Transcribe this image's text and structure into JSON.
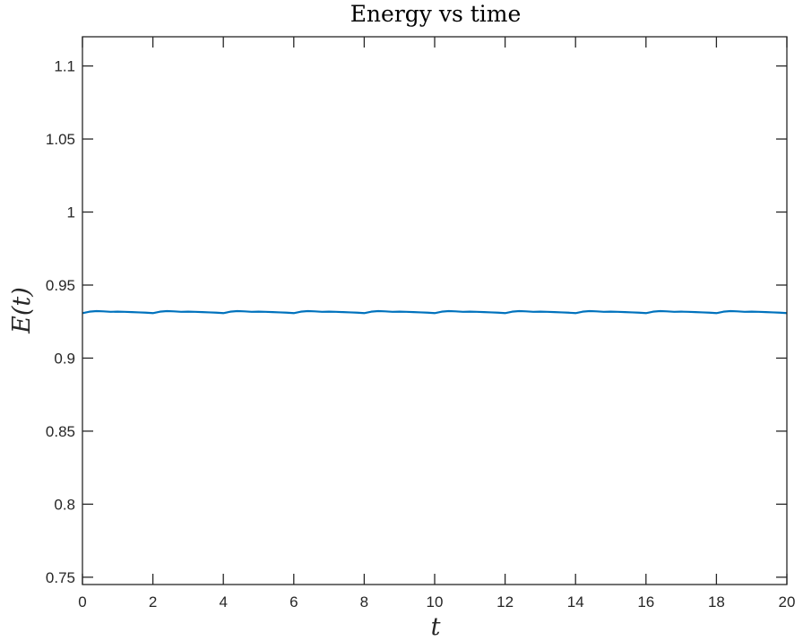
{
  "chart_data": {
    "type": "line",
    "title": "Energy vs time",
    "xlabel": "t",
    "ylabel": "E(t)",
    "xlim": [
      0,
      20
    ],
    "ylim": [
      0.745,
      1.12
    ],
    "grid": false,
    "x_ticks": [
      0,
      2,
      4,
      6,
      8,
      10,
      12,
      14,
      16,
      18,
      20
    ],
    "x_tick_labels": [
      "0",
      "2",
      "4",
      "6",
      "8",
      "10",
      "12",
      "14",
      "16",
      "18",
      "20"
    ],
    "y_ticks": [
      0.75,
      0.8,
      0.85,
      0.9,
      0.95,
      1,
      1.05,
      1.1
    ],
    "y_tick_labels": [
      "0.75",
      "0.8",
      "0.85",
      "0.9",
      "0.95",
      "1",
      "1.05",
      "1.1"
    ],
    "series": [
      {
        "color": "#0072BD",
        "x": [
          0,
          0.2,
          0.4,
          0.6,
          0.8,
          1.0,
          1.2,
          1.4,
          1.6,
          1.8,
          2.0,
          2.2,
          2.4,
          2.6,
          2.8,
          3.0,
          3.2,
          3.4,
          3.6,
          3.8,
          4.0,
          4.2,
          4.4,
          4.6,
          4.8,
          5.0,
          5.2,
          5.4,
          5.6,
          5.8,
          6.0,
          6.2,
          6.4,
          6.6,
          6.8,
          7.0,
          7.2,
          7.4,
          7.6,
          7.8,
          8.0,
          8.2,
          8.4,
          8.6,
          8.8,
          9.0,
          9.2,
          9.4,
          9.6,
          9.8,
          10.0,
          10.2,
          10.4,
          10.6,
          10.8,
          11.0,
          11.2,
          11.4,
          11.6,
          11.8,
          12.0,
          12.2,
          12.4,
          12.6,
          12.8,
          13.0,
          13.2,
          13.4,
          13.6,
          13.8,
          14.0,
          14.2,
          14.4,
          14.6,
          14.8,
          15.0,
          15.2,
          15.4,
          15.6,
          15.8,
          16.0,
          16.2,
          16.4,
          16.6,
          16.8,
          17.0,
          17.2,
          17.4,
          17.6,
          17.8,
          18.0,
          18.2,
          18.4,
          18.6,
          18.8,
          19.0,
          19.2,
          19.4,
          19.6,
          19.8,
          20.0
        ],
        "y": [
          0.9308,
          0.9318,
          0.9322,
          0.932,
          0.9317,
          0.9318,
          0.9317,
          0.9315,
          0.9313,
          0.9311,
          0.9308,
          0.9318,
          0.9322,
          0.932,
          0.9317,
          0.9318,
          0.9317,
          0.9315,
          0.9313,
          0.9311,
          0.9308,
          0.9318,
          0.9322,
          0.932,
          0.9317,
          0.9318,
          0.9317,
          0.9315,
          0.9313,
          0.9311,
          0.9308,
          0.9318,
          0.9322,
          0.932,
          0.9317,
          0.9318,
          0.9317,
          0.9315,
          0.9313,
          0.9311,
          0.9308,
          0.9318,
          0.9322,
          0.932,
          0.9317,
          0.9318,
          0.9317,
          0.9315,
          0.9313,
          0.9311,
          0.9308,
          0.9318,
          0.9322,
          0.932,
          0.9317,
          0.9318,
          0.9317,
          0.9315,
          0.9313,
          0.9311,
          0.9308,
          0.9318,
          0.9322,
          0.932,
          0.9317,
          0.9318,
          0.9317,
          0.9315,
          0.9313,
          0.9311,
          0.9308,
          0.9318,
          0.9322,
          0.932,
          0.9317,
          0.9318,
          0.9317,
          0.9315,
          0.9313,
          0.9311,
          0.9308,
          0.9318,
          0.9322,
          0.932,
          0.9317,
          0.9318,
          0.9317,
          0.9315,
          0.9313,
          0.9311,
          0.9308,
          0.9318,
          0.9322,
          0.932,
          0.9317,
          0.9318,
          0.9317,
          0.9315,
          0.9313,
          0.9311,
          0.9308
        ]
      }
    ]
  }
}
